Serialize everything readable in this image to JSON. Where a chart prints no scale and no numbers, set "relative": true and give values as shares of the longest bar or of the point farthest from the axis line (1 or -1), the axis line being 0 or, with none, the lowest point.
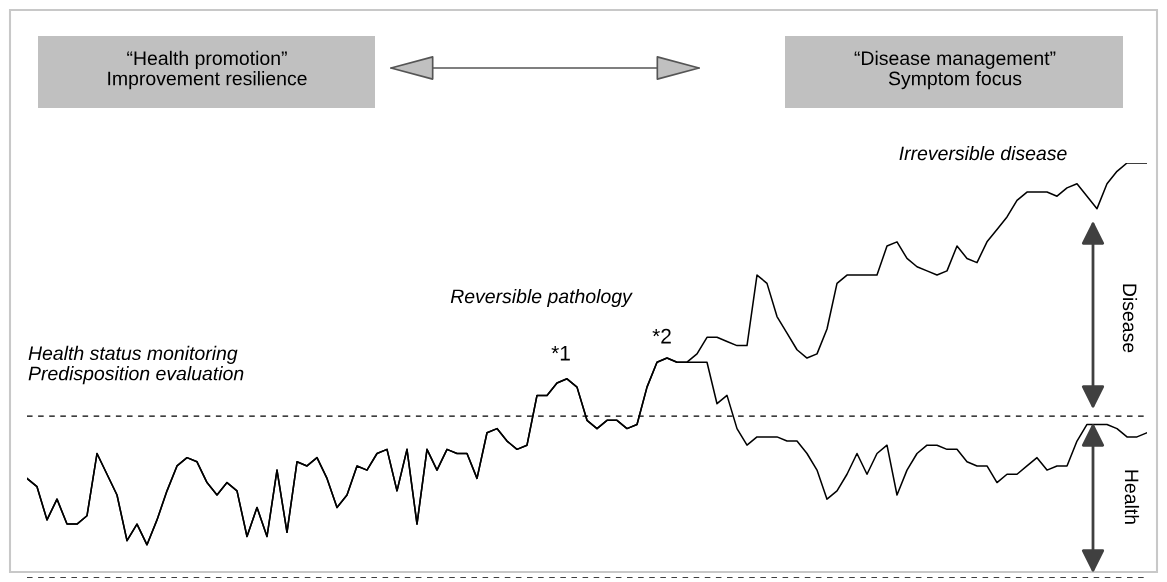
{
  "chart_data": {
    "type": "line",
    "relative": true,
    "line_style": "solid",
    "marker": "none",
    "categories": [
      null,
      null,
      null,
      null,
      null,
      null,
      null,
      null,
      null,
      null,
      null,
      null,
      null,
      null,
      null,
      null,
      null,
      null,
      null,
      null,
      null,
      null,
      null,
      null,
      null,
      null,
      null,
      null,
      null,
      null,
      null,
      null,
      null,
      null,
      null,
      null,
      null,
      null,
      null,
      null,
      null,
      null,
      null,
      null,
      null,
      null,
      null,
      null,
      null,
      null,
      null,
      null,
      null,
      null,
      null,
      null,
      null,
      null,
      null,
      null,
      null,
      null,
      null,
      null,
      null,
      null,
      null,
      null,
      null,
      null,
      null,
      null,
      null,
      null,
      null,
      null,
      null,
      null,
      null,
      null,
      null,
      null,
      null,
      null,
      null,
      null,
      null,
      null,
      null,
      null,
      null,
      null,
      null,
      null,
      null,
      null,
      null,
      null,
      null,
      null,
      null,
      null,
      null,
      null,
      null,
      null,
      null,
      null,
      null,
      null,
      null,
      null,
      null
    ],
    "series": [
      {
        "color": "#000000",
        "values": [
          0.24,
          0.22,
          0.14,
          0.19,
          0.13,
          0.13,
          0.15,
          0.3,
          0.25,
          0.2,
          0.09,
          0.13,
          0.08,
          0.14,
          0.21,
          0.27,
          0.29,
          0.28,
          0.23,
          0.2,
          0.23,
          0.21,
          0.1,
          0.17,
          0.1,
          0.26,
          0.11,
          0.28,
          0.27,
          0.29,
          0.24,
          0.17,
          0.2,
          0.27,
          0.26,
          0.3,
          0.31,
          0.21,
          0.31,
          0.13,
          0.31,
          0.26,
          0.31,
          0.3,
          0.3,
          0.24,
          0.35,
          0.36,
          0.33,
          0.31,
          0.32,
          0.44,
          0.44,
          0.47,
          0.48,
          0.46,
          0.38,
          0.36,
          0.38,
          0.38,
          0.36,
          0.37,
          0.46,
          0.52,
          0.53,
          0.52,
          0.52,
          0.54,
          0.58,
          0.58,
          0.57,
          0.56,
          0.56,
          0.73,
          0.71,
          0.63,
          0.59,
          0.55,
          0.53,
          0.54,
          0.6,
          0.71,
          0.73,
          0.73,
          0.73,
          0.73,
          0.8,
          0.81,
          0.77,
          0.75,
          0.74,
          0.73,
          0.74,
          0.8,
          0.77,
          0.76,
          0.81,
          0.84,
          0.87,
          0.91,
          0.93,
          0.93,
          0.93,
          0.92,
          0.94,
          0.95,
          0.92,
          0.89,
          0.95,
          0.98,
          1.0,
          1.0,
          1.0
        ]
      },
      {
        "color": "#000000",
        "values": [
          0.24,
          0.22,
          0.14,
          0.19,
          0.13,
          0.13,
          0.15,
          0.3,
          0.25,
          0.2,
          0.09,
          0.13,
          0.08,
          0.14,
          0.21,
          0.27,
          0.29,
          0.28,
          0.23,
          0.2,
          0.23,
          0.21,
          0.1,
          0.17,
          0.1,
          0.26,
          0.11,
          0.28,
          0.27,
          0.29,
          0.24,
          0.17,
          0.2,
          0.27,
          0.26,
          0.3,
          0.31,
          0.21,
          0.31,
          0.13,
          0.31,
          0.26,
          0.31,
          0.3,
          0.3,
          0.24,
          0.35,
          0.36,
          0.33,
          0.31,
          0.32,
          0.44,
          0.44,
          0.47,
          0.48,
          0.46,
          0.38,
          0.36,
          0.38,
          0.38,
          0.36,
          0.37,
          0.46,
          0.52,
          0.53,
          0.52,
          0.52,
          0.52,
          0.52,
          0.42,
          0.44,
          0.36,
          0.32,
          0.34,
          0.34,
          0.34,
          0.33,
          0.33,
          0.3,
          0.26,
          0.19,
          0.21,
          0.25,
          0.3,
          0.25,
          0.3,
          0.32,
          0.2,
          0.26,
          0.3,
          0.32,
          0.32,
          0.31,
          0.31,
          0.28,
          0.27,
          0.27,
          0.23,
          0.25,
          0.25,
          0.27,
          0.29,
          0.26,
          0.27,
          0.27,
          0.33,
          0.37,
          0.37,
          0.37,
          0.36,
          0.34,
          0.34,
          0.35
        ]
      }
    ],
    "ref_lines": [
      {
        "axis": "y",
        "value": 0.39,
        "label": null,
        "color": "#000000",
        "line_style": "dashed"
      },
      {
        "axis": "y",
        "value": 0,
        "label": null,
        "color": "#000000",
        "line_style": "dashed"
      }
    ],
    "annotations": [
      "“Health promotion”\nImprovement resilience",
      "“Disease management”\nSymptom focus",
      "Health status monitoring\nPredisposition evaluation",
      "Reversible pathology",
      "*1",
      "*2",
      "Irreversible disease",
      "Disease",
      "Health"
    ]
  }
}
